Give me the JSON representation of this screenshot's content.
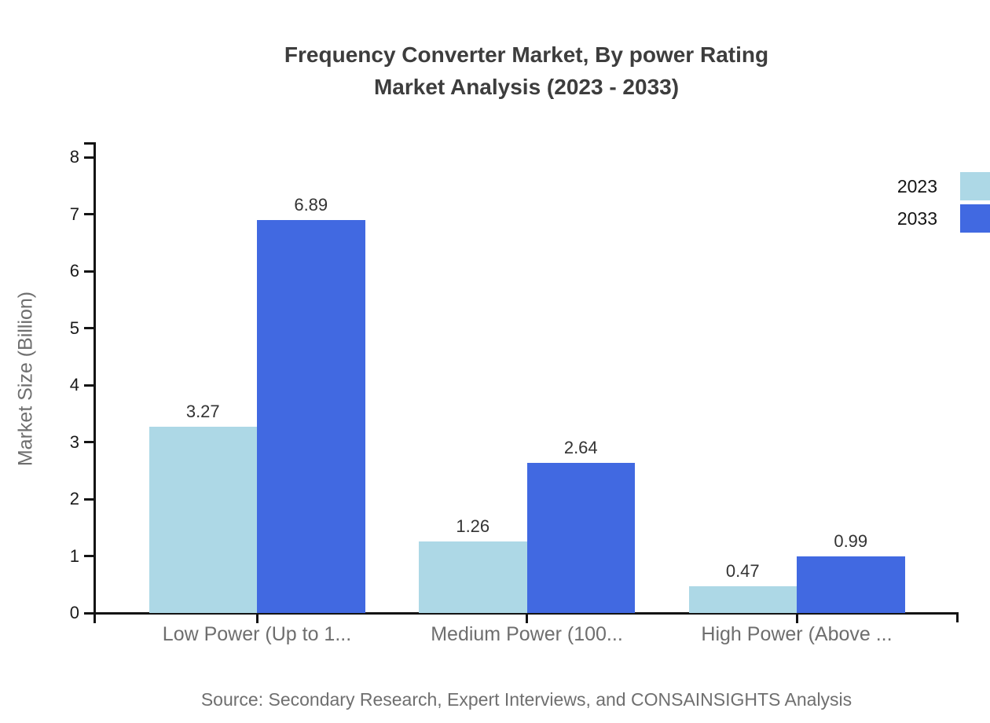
{
  "title": {
    "line1": "Frequency Converter Market, By power Rating",
    "line2": "Market Analysis (2023 - 2033)"
  },
  "source": "Source: Secondary Research, Expert Interviews, and CONSAINSIGHTS Analysis",
  "chart_data": {
    "type": "bar",
    "categories": [
      "Low Power (Up to 1...",
      "Medium Power (100...",
      "High Power (Above ..."
    ],
    "series": [
      {
        "name": "2023",
        "color": "#ADD8E6",
        "values": [
          3.27,
          1.26,
          0.47
        ]
      },
      {
        "name": "2033",
        "color": "#4169E1",
        "values": [
          6.89,
          2.64,
          0.99
        ]
      }
    ],
    "title": "Frequency Converter Market, By power Rating Market Analysis (2023 - 2033)",
    "xlabel": "",
    "ylabel": "Market Size (Billion)",
    "ylim": [
      0,
      8
    ],
    "ytick_step": 1,
    "grid": false,
    "legend_position": "top-right",
    "value_labels": true
  }
}
